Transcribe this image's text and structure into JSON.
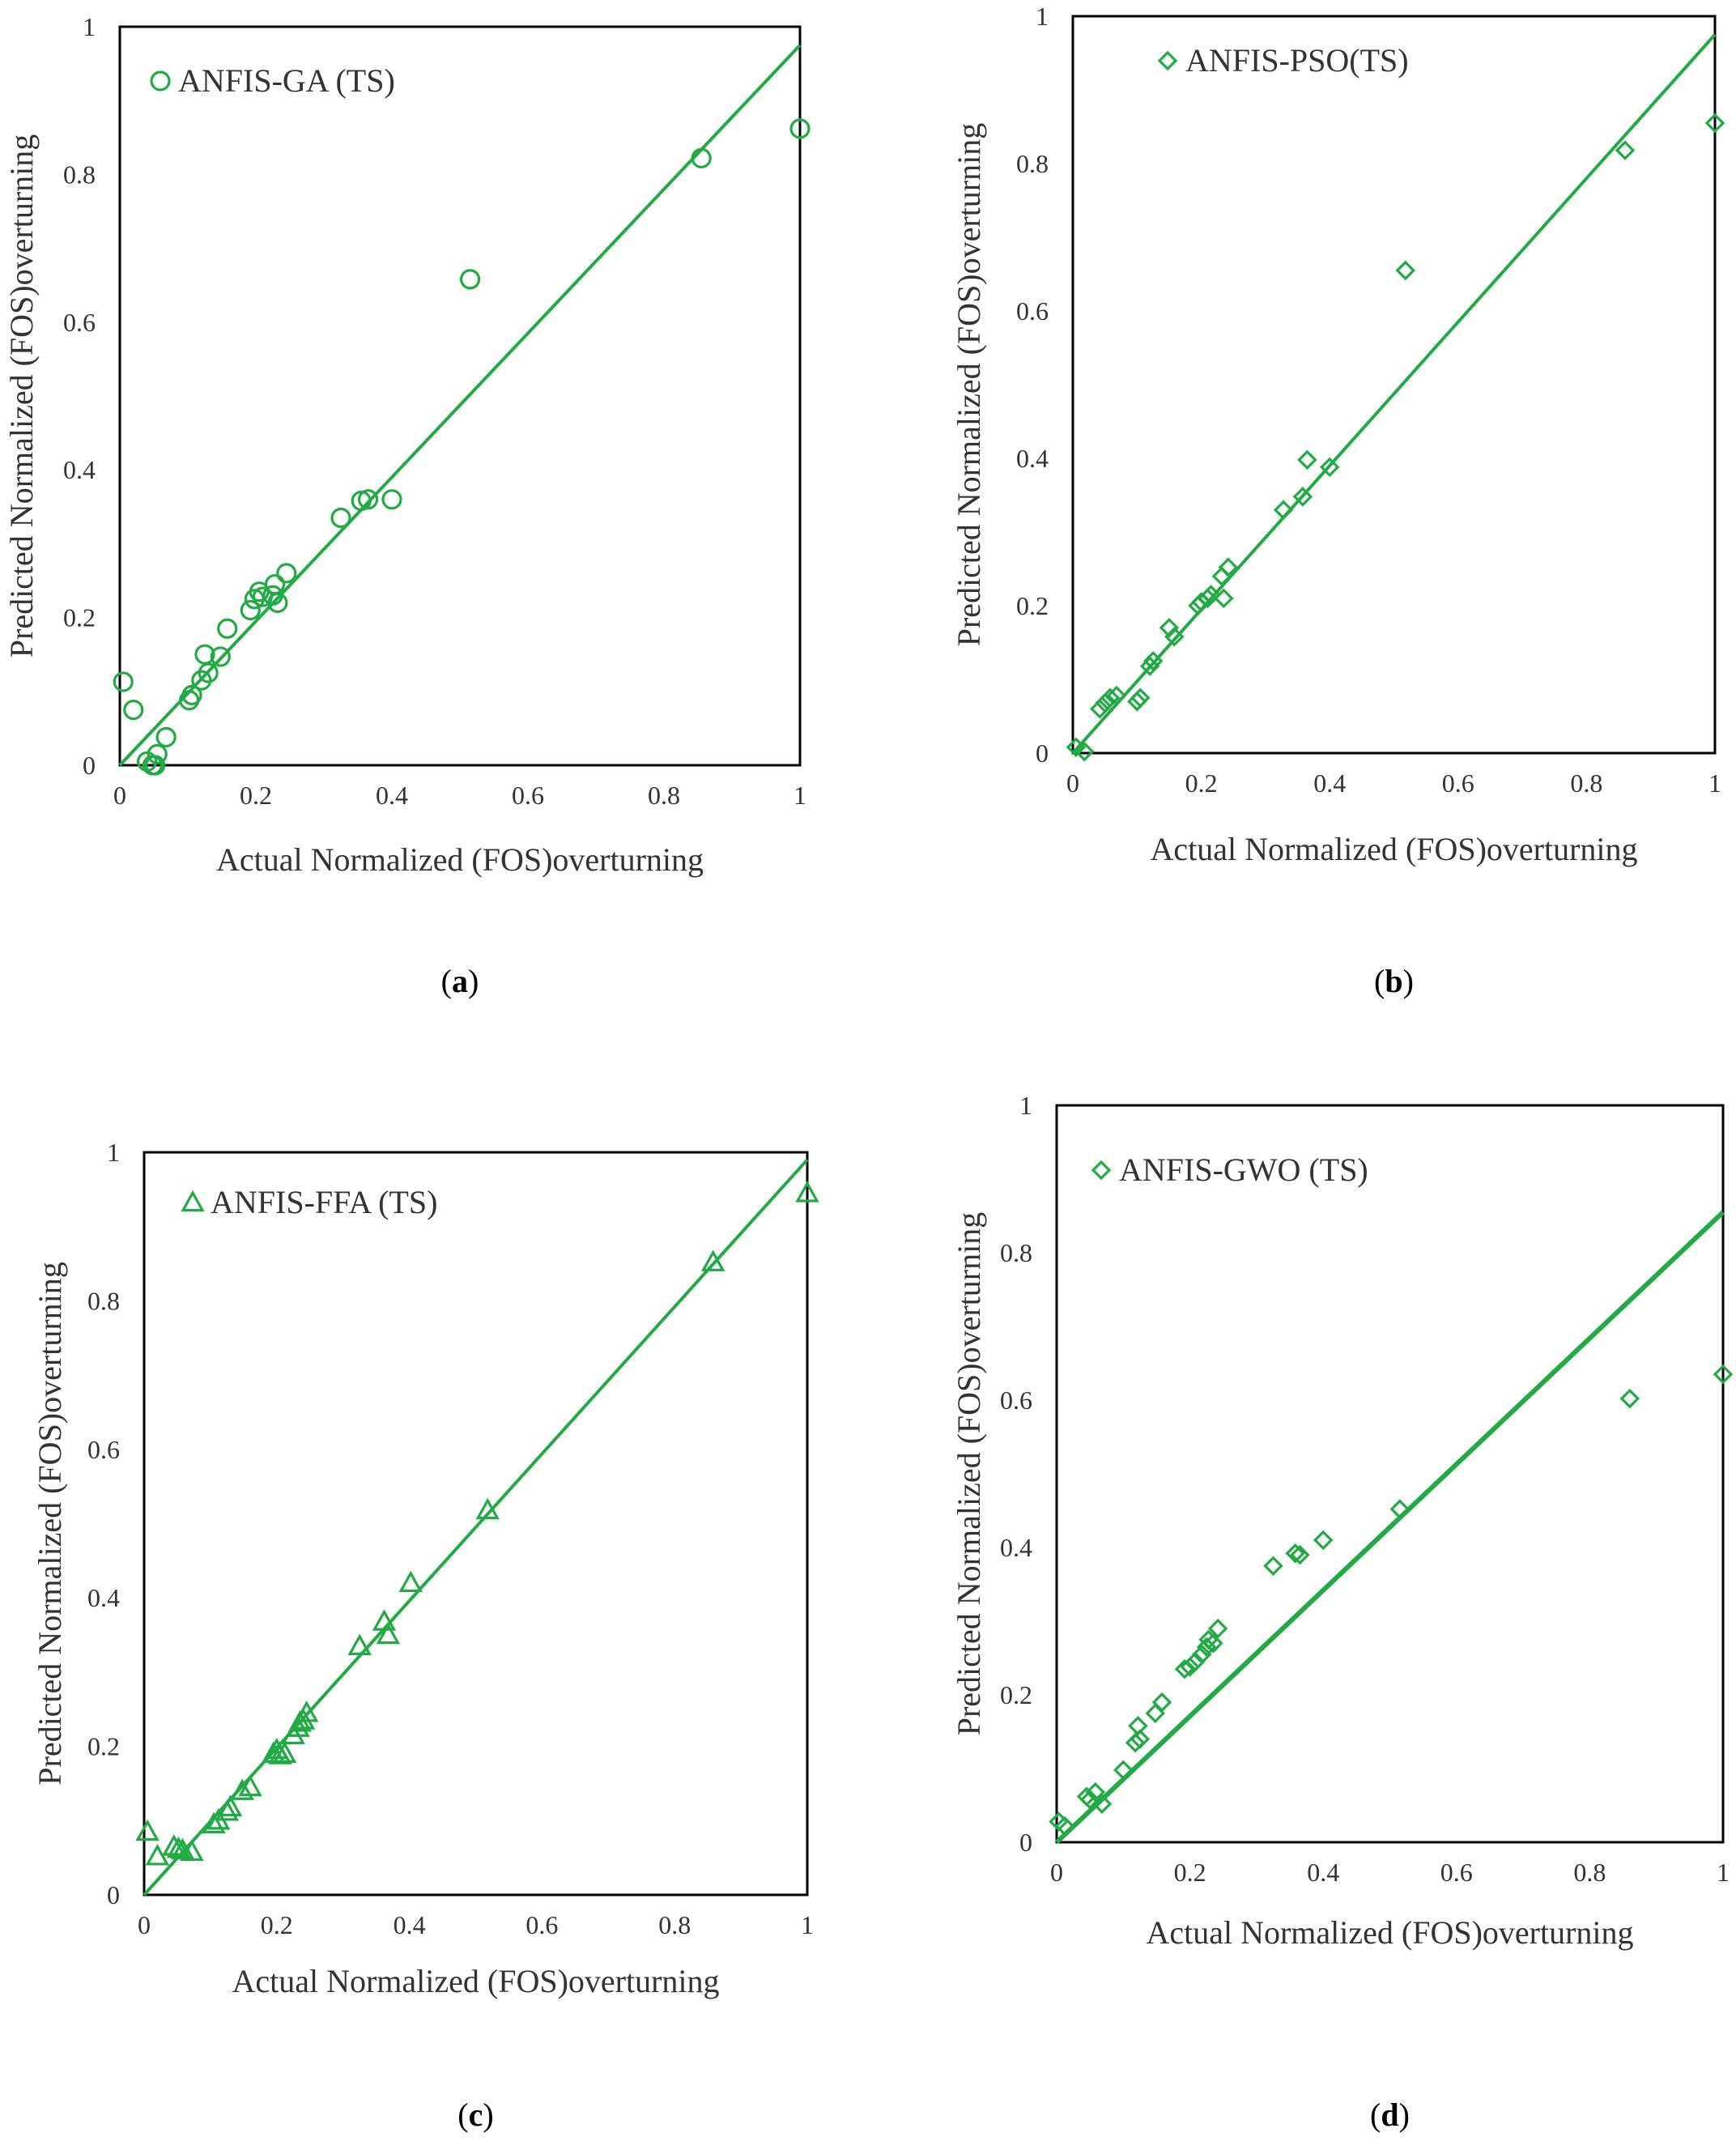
{
  "colors": {
    "series": "#22aa44",
    "frame": "#000000",
    "text": "#333333"
  },
  "chart_data": [
    {
      "type": "scatter",
      "panel_label": "a",
      "legend": "ANFIS-GA (TS)",
      "marker": "circle",
      "xlabel": "Actual Normalized (FOS)overturning",
      "ylabel": "Predicted Normalized (FOS)overturning",
      "xlim": [
        0,
        1
      ],
      "ylim": [
        0,
        1
      ],
      "xticks": [
        "0",
        "0.2",
        "0.4",
        "0.6",
        "0.8",
        "1"
      ],
      "yticks": [
        "0",
        "0.2",
        "0.4",
        "0.6",
        "0.8",
        "1"
      ],
      "fit_line": [
        [
          0,
          0
        ],
        [
          1,
          0.975
        ]
      ],
      "points": [
        [
          0.005,
          0.113
        ],
        [
          0.02,
          0.075
        ],
        [
          0.04,
          0.005
        ],
        [
          0.048,
          0.0
        ],
        [
          0.052,
          0.0
        ],
        [
          0.055,
          0.015
        ],
        [
          0.068,
          0.038
        ],
        [
          0.102,
          0.088
        ],
        [
          0.106,
          0.095
        ],
        [
          0.12,
          0.115
        ],
        [
          0.125,
          0.15
        ],
        [
          0.13,
          0.125
        ],
        [
          0.148,
          0.147
        ],
        [
          0.158,
          0.185
        ],
        [
          0.192,
          0.21
        ],
        [
          0.198,
          0.225
        ],
        [
          0.205,
          0.235
        ],
        [
          0.21,
          0.228
        ],
        [
          0.225,
          0.23
        ],
        [
          0.228,
          0.245
        ],
        [
          0.232,
          0.22
        ],
        [
          0.245,
          0.26
        ],
        [
          0.325,
          0.335
        ],
        [
          0.355,
          0.358
        ],
        [
          0.365,
          0.36
        ],
        [
          0.4,
          0.36
        ],
        [
          0.515,
          0.658
        ],
        [
          0.855,
          0.822
        ],
        [
          1.0,
          0.862
        ]
      ]
    },
    {
      "type": "scatter",
      "panel_label": "b",
      "legend": "ANFIS-PSO(TS)",
      "marker": "diamond",
      "xlabel": "Actual Normalized (FOS)overturning",
      "ylabel": "Predicted Normalized (FOS)overturning",
      "xlim": [
        0,
        1
      ],
      "ylim": [
        0,
        1
      ],
      "xticks": [
        "0",
        "0.2",
        "0.4",
        "0.6",
        "0.8",
        "1"
      ],
      "yticks": [
        "0",
        "0.2",
        "0.4",
        "0.6",
        "0.8",
        "1"
      ],
      "fit_line": [
        [
          0,
          0
        ],
        [
          1,
          0.975
        ]
      ],
      "points": [
        [
          0.005,
          0.008
        ],
        [
          0.018,
          0.002
        ],
        [
          0.042,
          0.06
        ],
        [
          0.05,
          0.068
        ],
        [
          0.058,
          0.075
        ],
        [
          0.068,
          0.078
        ],
        [
          0.1,
          0.07
        ],
        [
          0.105,
          0.075
        ],
        [
          0.12,
          0.118
        ],
        [
          0.125,
          0.125
        ],
        [
          0.15,
          0.17
        ],
        [
          0.158,
          0.158
        ],
        [
          0.195,
          0.2
        ],
        [
          0.2,
          0.205
        ],
        [
          0.21,
          0.21
        ],
        [
          0.215,
          0.215
        ],
        [
          0.232,
          0.24
        ],
        [
          0.235,
          0.21
        ],
        [
          0.242,
          0.252
        ],
        [
          0.328,
          0.33
        ],
        [
          0.358,
          0.348
        ],
        [
          0.365,
          0.398
        ],
        [
          0.4,
          0.388
        ],
        [
          0.518,
          0.655
        ],
        [
          0.86,
          0.818
        ],
        [
          1.0,
          0.855
        ]
      ]
    },
    {
      "type": "scatter",
      "panel_label": "c",
      "legend": "ANFIS-FFA (TS)",
      "marker": "triangle",
      "xlabel": "Actual Normalized (FOS)overturning",
      "ylabel": "Predicted Normalized (FOS)overturning",
      "xlim": [
        0,
        1
      ],
      "ylim": [
        0,
        1
      ],
      "xticks": [
        "0",
        "0.2",
        "0.4",
        "0.6",
        "0.8",
        "1"
      ],
      "yticks": [
        "0",
        "0.2",
        "0.4",
        "0.6",
        "0.8",
        "1"
      ],
      "fit_line": [
        [
          0,
          0
        ],
        [
          1,
          0.99
        ]
      ],
      "points": [
        [
          0.005,
          0.085
        ],
        [
          0.02,
          0.052
        ],
        [
          0.045,
          0.065
        ],
        [
          0.052,
          0.062
        ],
        [
          0.058,
          0.06
        ],
        [
          0.072,
          0.058
        ],
        [
          0.105,
          0.095
        ],
        [
          0.112,
          0.1
        ],
        [
          0.125,
          0.112
        ],
        [
          0.13,
          0.118
        ],
        [
          0.148,
          0.14
        ],
        [
          0.16,
          0.145
        ],
        [
          0.195,
          0.19
        ],
        [
          0.2,
          0.195
        ],
        [
          0.205,
          0.188
        ],
        [
          0.212,
          0.19
        ],
        [
          0.225,
          0.215
        ],
        [
          0.232,
          0.225
        ],
        [
          0.235,
          0.232
        ],
        [
          0.24,
          0.235
        ],
        [
          0.245,
          0.245
        ],
        [
          0.325,
          0.335
        ],
        [
          0.362,
          0.368
        ],
        [
          0.368,
          0.35
        ],
        [
          0.402,
          0.42
        ],
        [
          0.518,
          0.518
        ],
        [
          0.858,
          0.852
        ],
        [
          1.0,
          0.945
        ]
      ]
    },
    {
      "type": "scatter",
      "panel_label": "d",
      "legend": "ANFIS-GWO (TS)",
      "marker": "diamond",
      "xlabel": "Actual Normalized (FOS)overturning",
      "ylabel": "Predicted Normalized (FOS)overturning",
      "xlim": [
        0,
        1
      ],
      "ylim": [
        0,
        1
      ],
      "xticks": [
        "0",
        "0.2",
        "0.4",
        "0.6",
        "0.8",
        "1"
      ],
      "yticks": [
        "0",
        "0.2",
        "0.4",
        "0.6",
        "0.8",
        "1"
      ],
      "fit_line": [
        [
          0,
          0
        ],
        [
          1,
          0.855
        ]
      ],
      "points": [
        [
          0.003,
          0.028
        ],
        [
          0.012,
          0.022
        ],
        [
          0.045,
          0.062
        ],
        [
          0.05,
          0.058
        ],
        [
          0.058,
          0.068
        ],
        [
          0.068,
          0.052
        ],
        [
          0.1,
          0.098
        ],
        [
          0.118,
          0.135
        ],
        [
          0.122,
          0.158
        ],
        [
          0.125,
          0.14
        ],
        [
          0.148,
          0.175
        ],
        [
          0.158,
          0.19
        ],
        [
          0.192,
          0.235
        ],
        [
          0.2,
          0.238
        ],
        [
          0.208,
          0.245
        ],
        [
          0.218,
          0.255
        ],
        [
          0.225,
          0.265
        ],
        [
          0.228,
          0.275
        ],
        [
          0.235,
          0.27
        ],
        [
          0.242,
          0.29
        ],
        [
          0.325,
          0.375
        ],
        [
          0.358,
          0.392
        ],
        [
          0.365,
          0.39
        ],
        [
          0.4,
          0.41
        ],
        [
          0.515,
          0.452
        ],
        [
          0.86,
          0.602
        ],
        [
          1.0,
          0.635
        ]
      ]
    }
  ]
}
